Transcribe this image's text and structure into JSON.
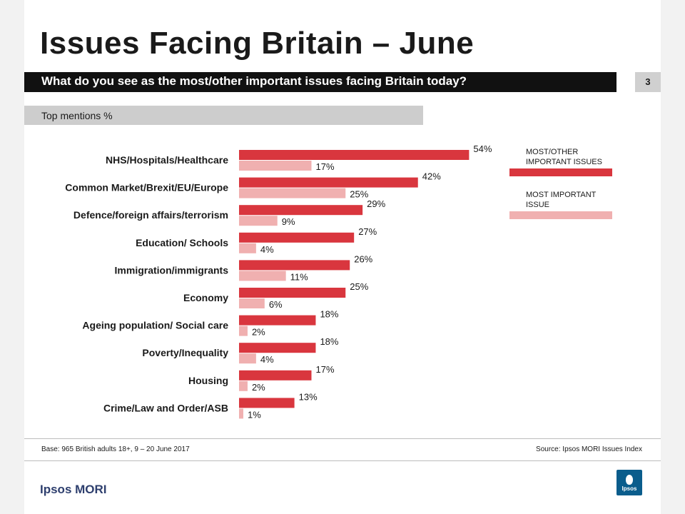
{
  "title": "Issues Facing Britain – June",
  "question": "What do you see as the most/other important issues facing Britain today?",
  "page_number": "3",
  "subtitle": "Top mentions %",
  "footer": {
    "base": "Base: 965 British adults 18+, 9 – 20 June 2017",
    "source": "Source: Ipsos MORI Issues Index"
  },
  "brand": "Ipsos MORI",
  "logo_text": "Ipsos",
  "colors": {
    "dark_bar": "#d9363e",
    "light_bar": "#f0b0b0",
    "header": "#111111",
    "brand": "#2e3f6e"
  },
  "chart_data": {
    "type": "bar",
    "orientation": "horizontal",
    "categories": [
      "NHS/Hospitals/Healthcare",
      "Common Market/Brexit/EU/Europe",
      "Defence/foreign affairs/terrorism",
      "Education/ Schools",
      "Immigration/immigrants",
      "Economy",
      "Ageing population/ Social care",
      "Poverty/Inequality",
      "Housing",
      "Crime/Law and Order/ASB"
    ],
    "series": [
      {
        "name": "MOST/OTHER IMPORTANT ISSUES",
        "values": [
          54,
          42,
          29,
          27,
          26,
          25,
          18,
          18,
          17,
          13
        ],
        "color": "#d9363e"
      },
      {
        "name": "MOST IMPORTANT ISSUE",
        "values": [
          17,
          25,
          9,
          4,
          11,
          6,
          2,
          4,
          2,
          1
        ],
        "color": "#f0b0b0"
      }
    ],
    "value_suffix": "%",
    "xlim": [
      0,
      100
    ],
    "legend_position": "right"
  }
}
